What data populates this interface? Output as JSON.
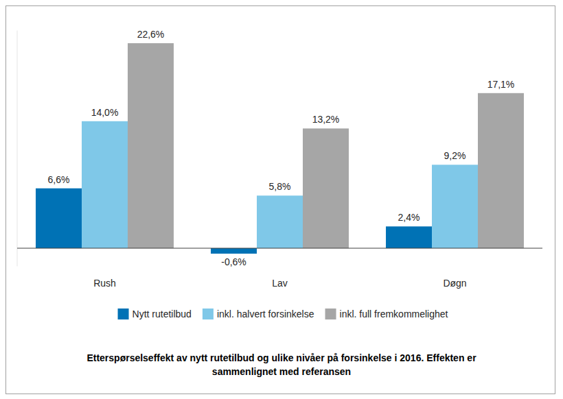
{
  "chart_data": {
    "type": "bar",
    "title": "Etterspørselseffekt av nytt rutetilbud og ulike nivåer på forsinkelse i 2016. Effekten er sammenlignet med referansen",
    "categories": [
      "Rush",
      "Lav",
      "Døgn"
    ],
    "series": [
      {
        "name": "Nytt rutetilbud",
        "color": "#0072b5",
        "values": [
          6.6,
          -0.6,
          2.4
        ],
        "value_labels": [
          "6,6%",
          "-0,6%",
          "2,4%"
        ]
      },
      {
        "name": "inkl. halvert forsinkelse",
        "color": "#7fc8e8",
        "values": [
          14.0,
          5.8,
          9.2
        ],
        "value_labels": [
          "14,0%",
          "5,8%",
          "9,2%"
        ]
      },
      {
        "name": "inkl. full fremkommelighet",
        "color": "#a6a6a6",
        "values": [
          22.6,
          13.2,
          17.1
        ],
        "value_labels": [
          "22,6%",
          "13,2%",
          "17,1%"
        ]
      }
    ],
    "ylim": [
      -2,
      24
    ],
    "yticks": [
      0
    ],
    "tick_labels": "x",
    "data_labels": true,
    "legend": "bottom",
    "grid": false
  }
}
